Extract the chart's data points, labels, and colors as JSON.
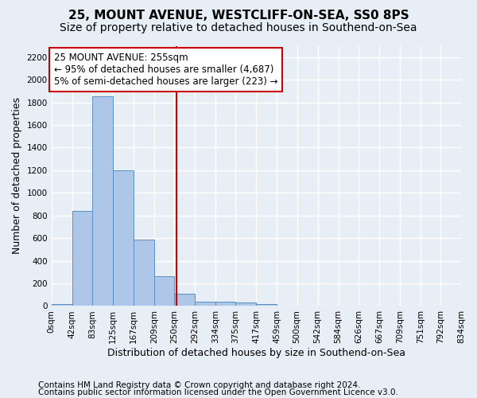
{
  "title1": "25, MOUNT AVENUE, WESTCLIFF-ON-SEA, SS0 8PS",
  "title2": "Size of property relative to detached houses in Southend-on-Sea",
  "xlabel": "Distribution of detached houses by size in Southend-on-Sea",
  "ylabel": "Number of detached properties",
  "footnote1": "Contains HM Land Registry data © Crown copyright and database right 2024.",
  "footnote2": "Contains public sector information licensed under the Open Government Licence v3.0.",
  "bar_bins": [
    0,
    42,
    83,
    125,
    167,
    209,
    250,
    292,
    334,
    375,
    417,
    459,
    500,
    542,
    584,
    626,
    667,
    709,
    751,
    792,
    834
  ],
  "bar_values": [
    20,
    840,
    1850,
    1200,
    590,
    260,
    110,
    40,
    35,
    30,
    20,
    0,
    0,
    0,
    0,
    0,
    0,
    0,
    0,
    0
  ],
  "bar_color": "#aec6e8",
  "bar_edge_color": "#5a8fc2",
  "property_size": 255,
  "property_label": "25 MOUNT AVENUE: 255sqm",
  "annotation_line1": "← 95% of detached houses are smaller (4,687)",
  "annotation_line2": "5% of semi-detached houses are larger (223) →",
  "annotation_box_color": "#ffffff",
  "annotation_box_edge": "#cc0000",
  "vline_color": "#cc0000",
  "ylim": [
    0,
    2300
  ],
  "yticks": [
    0,
    200,
    400,
    600,
    800,
    1000,
    1200,
    1400,
    1600,
    1800,
    2000,
    2200
  ],
  "bg_color": "#e8eef5",
  "grid_color": "#ffffff",
  "title1_fontsize": 11,
  "title2_fontsize": 10,
  "xlabel_fontsize": 9,
  "ylabel_fontsize": 9,
  "footnote_fontsize": 7.5,
  "tick_fontsize": 7.5,
  "annotation_fontsize": 8.5
}
